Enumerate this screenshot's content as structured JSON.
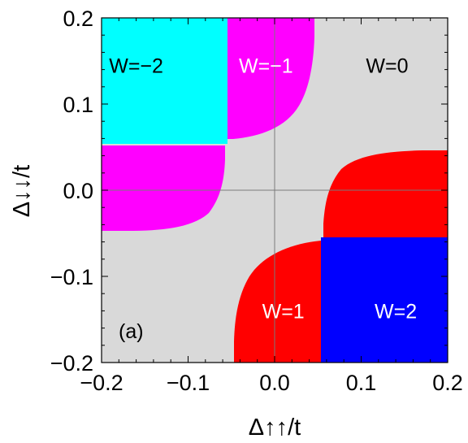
{
  "chart_data": {
    "type": "heatmap",
    "xlabel": "Δ↑↑/t",
    "ylabel": "Δ↓↓/t",
    "xlim": [
      -0.2,
      0.2
    ],
    "ylim": [
      -0.2,
      0.2
    ],
    "x_ticks": [
      "−0.2",
      "−0.1",
      "0.0",
      "0.1",
      "0.2"
    ],
    "y_ticks": [
      "−0.2",
      "−0.1",
      "0.0",
      "0.1",
      "0.2"
    ],
    "panel_label": "(a)",
    "grid": false,
    "zero_lines": true,
    "background_color": "#d9d9d9",
    "regions": [
      {
        "label": "W=−2",
        "color": "#00ffff",
        "label_color": "#000000",
        "label_at": [
          -0.16,
          0.145
        ]
      },
      {
        "label": "W=−1",
        "color": "#ff00ff",
        "label_color": "#ffffff",
        "label_at": [
          -0.01,
          0.145
        ]
      },
      {
        "label": "W=0",
        "color": "#d9d9d9",
        "label_color": "#000000",
        "label_at": [
          0.13,
          0.145
        ]
      },
      {
        "label": "W=1",
        "color": "#ff0000",
        "label_color": "#ffffff",
        "label_at": [
          0.01,
          -0.14
        ]
      },
      {
        "label": "W=2",
        "color": "#0000ff",
        "label_color": "#ffffff",
        "label_at": [
          0.14,
          -0.14
        ]
      }
    ],
    "approx_boundaries": {
      "x_edges": [
        -0.055,
        0.052
      ],
      "y_edges": [
        -0.055,
        0.055
      ]
    }
  }
}
